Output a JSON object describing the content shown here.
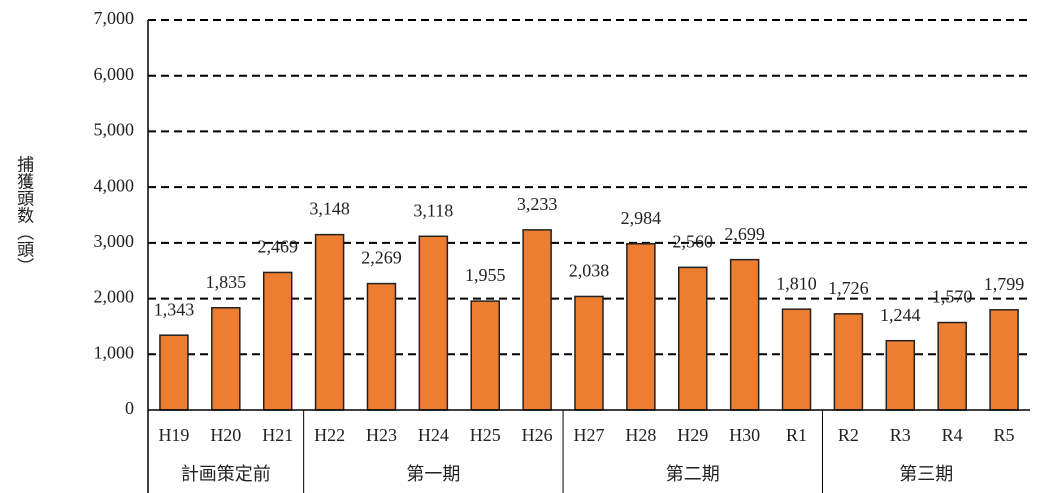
{
  "chart_data": {
    "type": "bar",
    "y_label": "捕獲頭数（頭）",
    "groups": [
      {
        "name": "計画策定前",
        "categories": [
          "H19",
          "H20",
          "H21"
        ]
      },
      {
        "name": "第一期",
        "categories": [
          "H22",
          "H23",
          "H24",
          "H25",
          "H26"
        ]
      },
      {
        "name": "第二期",
        "categories": [
          "H27",
          "H28",
          "H29",
          "H30",
          "R1"
        ]
      },
      {
        "name": "第三期",
        "categories": [
          "R2",
          "R3",
          "R4",
          "R5"
        ]
      }
    ],
    "values": [
      1343,
      1835,
      2469,
      3148,
      2269,
      3118,
      1955,
      3233,
      2038,
      2984,
      2560,
      2699,
      1810,
      1726,
      1244,
      1570,
      1799
    ],
    "value_labels": [
      "1,343",
      "1,835",
      "2,469",
      "3,148",
      "2,269",
      "3,118",
      "1,955",
      "3,233",
      "2,038",
      "2,984",
      "2,560",
      "2,699",
      "1,810",
      "1,726",
      "1,244",
      "1,570",
      "1,799"
    ],
    "color": "#ed7d31",
    "ylim": [
      0,
      7000
    ],
    "yticks": [
      0,
      {
        "value": 1000,
        "label": "1,000"
      },
      {
        "value": 2000,
        "label": "2,000"
      },
      {
        "value": 3000,
        "label": "3,000"
      },
      {
        "value": 4000,
        "label": "4,000"
      },
      {
        "value": 5000,
        "label": "5,000"
      },
      {
        "value": 6000,
        "label": "6,000"
      },
      {
        "value": 7000,
        "label": "7,000"
      }
    ],
    "grid": true
  }
}
